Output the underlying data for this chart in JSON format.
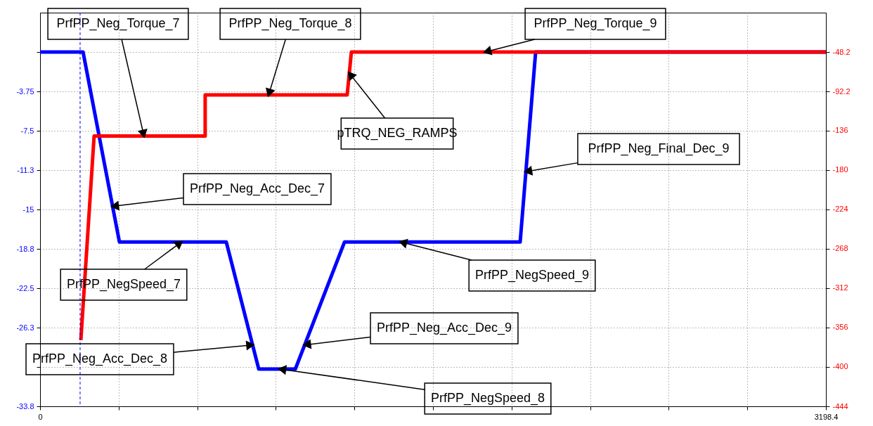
{
  "chart_data": {
    "type": "line",
    "xlim": [
      0,
      3198.4
    ],
    "xticks": [
      0,
      {
        "value": 319.84,
        "label": null
      },
      {
        "value": 639.68,
        "label": null
      },
      {
        "value": 959.52,
        "label": null
      },
      {
        "value": 1279.36,
        "label": null
      },
      {
        "value": 1599.2,
        "label": null
      },
      {
        "value": 1919.04,
        "label": null
      },
      {
        "value": 2238.88,
        "label": null
      },
      {
        "value": 2558.72,
        "label": null
      },
      {
        "value": 2878.56,
        "label": null
      },
      3198.4
    ],
    "ylim": [
      -33.75,
      3.75
    ],
    "yticks": [
      {
        "value": 0,
        "label": null
      },
      -3.75,
      -7.5,
      {
        "value": -11.25,
        "label": "-11.3"
      },
      -15,
      {
        "value": -18.75,
        "label": "-18.8"
      },
      -22.5,
      {
        "value": -26.25,
        "label": "-26.3"
      },
      {
        "value": -30,
        "label": null
      },
      {
        "value": -33.75,
        "label": "-33.8"
      }
    ],
    "y2lim": [
      -444,
      -4.2
    ],
    "y2ticks": [
      -48.2,
      -92.2,
      -136,
      -180,
      -224,
      -268,
      -312,
      -356,
      -400,
      -444
    ],
    "grid": true,
    "series": [
      {
        "color": "#0000ff",
        "x": [
          0,
          175,
          323,
          758,
          890,
          1039,
          1239,
          1954,
          2017,
          3198.4
        ],
        "values": [
          0,
          0,
          -18.1,
          -18.1,
          -30.2,
          -30.2,
          -18.1,
          -18.1,
          0,
          0
        ]
      },
      {
        "color": "#ff0000",
        "axis": "y2",
        "x": [
          166,
          220,
          672,
          672,
          1250,
          1267,
          3198.4
        ],
        "values": [
          -370,
          -142,
          -142,
          -96,
          -96,
          -48.2,
          -48.2
        ]
      }
    ],
    "ref_lines": [
      {
        "axis": "x",
        "value": 163,
        "color": "#0000ff",
        "line_style": "dashed"
      }
    ],
    "annotations": [
      {
        "text": "PrfPP_Neg_Torque_7",
        "x": 423,
        "y": -8.0
      },
      {
        "text": "PrfPP_Neg_Torque_8",
        "x": 930,
        "y": -4.1
      },
      {
        "text": "PrfPP_Neg_Torque_9",
        "x": 1811,
        "y": 0
      },
      {
        "text": "pTRQ_NEG_RAMPS",
        "x": 1258,
        "y": -2.0
      },
      {
        "text": "PrfPP_Neg_Final_Dec_9",
        "x": 1977,
        "y": -11.4
      },
      {
        "text": "PrfPP_Neg_Acc_Dec_7",
        "x": 295,
        "y": -14.7
      },
      {
        "text": "PrfPP_NegSpeed_7",
        "x": 575,
        "y": -18.1
      },
      {
        "text": "PrfPP_NegSpeed_9",
        "x": 1468,
        "y": -18.1
      },
      {
        "text": "PrfPP_Neg_Acc_Dec_9",
        "x": 1077,
        "y": -27.9
      },
      {
        "text": "PrfPP_Neg_Acc_Dec_8",
        "x": 865,
        "y": -27.9
      },
      {
        "text": "PrfPP_NegSpeed_8",
        "x": 976,
        "y": -30.2
      }
    ]
  }
}
